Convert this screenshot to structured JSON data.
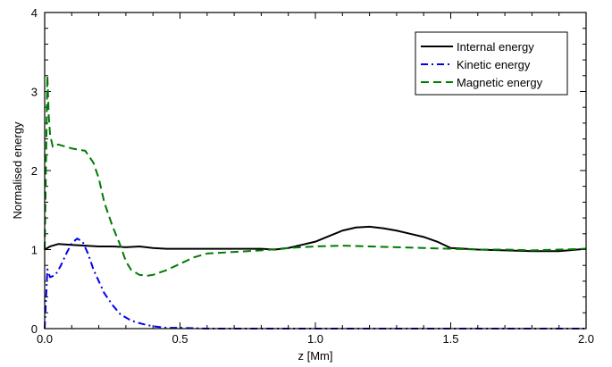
{
  "chart_data": {
    "type": "line",
    "title": "",
    "xlabel": "z [Mm]",
    "ylabel": "Normalised energy",
    "xlim": [
      0,
      2.0
    ],
    "ylim": [
      0,
      4
    ],
    "x_ticks": [
      0,
      0.5,
      1.0,
      1.5,
      2.0
    ],
    "x_tick_labels": [
      "0.0",
      "0.5",
      "1.0",
      "1.5",
      "2.0"
    ],
    "y_ticks": [
      0,
      1,
      2,
      3,
      4
    ],
    "y_tick_labels": [
      "0",
      "1",
      "2",
      "3",
      "4"
    ],
    "grid": false,
    "legend_position": "top-right",
    "series": [
      {
        "name": "Internal energy",
        "color": "#000000",
        "style": "solid",
        "x": [
          0,
          0.02,
          0.05,
          0.1,
          0.15,
          0.2,
          0.25,
          0.3,
          0.35,
          0.4,
          0.45,
          0.5,
          0.6,
          0.7,
          0.8,
          0.85,
          0.9,
          0.95,
          1.0,
          1.05,
          1.1,
          1.15,
          1.2,
          1.25,
          1.3,
          1.35,
          1.4,
          1.45,
          1.5,
          1.6,
          1.7,
          1.8,
          1.9,
          2.0
        ],
        "y": [
          1.0,
          1.04,
          1.07,
          1.06,
          1.05,
          1.04,
          1.04,
          1.03,
          1.04,
          1.02,
          1.01,
          1.01,
          1.01,
          1.01,
          1.01,
          1.0,
          1.02,
          1.06,
          1.1,
          1.17,
          1.24,
          1.28,
          1.29,
          1.27,
          1.24,
          1.2,
          1.16,
          1.1,
          1.02,
          1.0,
          0.99,
          0.98,
          0.98,
          1.01
        ]
      },
      {
        "name": "Kinetic energy",
        "color": "#0000ee",
        "style": "dashdot",
        "x": [
          0.0,
          0.01,
          0.02,
          0.04,
          0.06,
          0.08,
          0.1,
          0.12,
          0.14,
          0.16,
          0.18,
          0.2,
          0.22,
          0.25,
          0.28,
          0.32,
          0.36,
          0.4,
          0.45,
          0.5,
          0.6,
          0.8,
          1.0,
          1.5,
          2.0
        ],
        "y": [
          0.0,
          0.75,
          0.65,
          0.68,
          0.8,
          0.95,
          1.08,
          1.14,
          1.1,
          0.95,
          0.75,
          0.6,
          0.45,
          0.3,
          0.18,
          0.1,
          0.06,
          0.03,
          0.01,
          0.01,
          0.0,
          0.0,
          0.0,
          0.0,
          0.0
        ]
      },
      {
        "name": "Magnetic energy",
        "color": "#007a00",
        "style": "dashed",
        "x": [
          0.0,
          0.01,
          0.015,
          0.02,
          0.03,
          0.05,
          0.1,
          0.15,
          0.18,
          0.2,
          0.22,
          0.25,
          0.28,
          0.3,
          0.32,
          0.35,
          0.38,
          0.4,
          0.45,
          0.5,
          0.55,
          0.6,
          0.7,
          0.8,
          0.9,
          1.0,
          1.1,
          1.2,
          1.3,
          1.4,
          1.5,
          1.6,
          1.7,
          1.8,
          1.9,
          2.0
        ],
        "y": [
          1.0,
          3.2,
          2.7,
          2.45,
          2.3,
          2.33,
          2.28,
          2.25,
          2.1,
          1.9,
          1.6,
          1.3,
          1.05,
          0.85,
          0.74,
          0.68,
          0.67,
          0.68,
          0.74,
          0.82,
          0.9,
          0.95,
          0.97,
          0.99,
          1.02,
          1.04,
          1.05,
          1.04,
          1.03,
          1.02,
          1.01,
          1.0,
          1.0,
          0.99,
          1.0,
          1.01
        ]
      }
    ]
  }
}
